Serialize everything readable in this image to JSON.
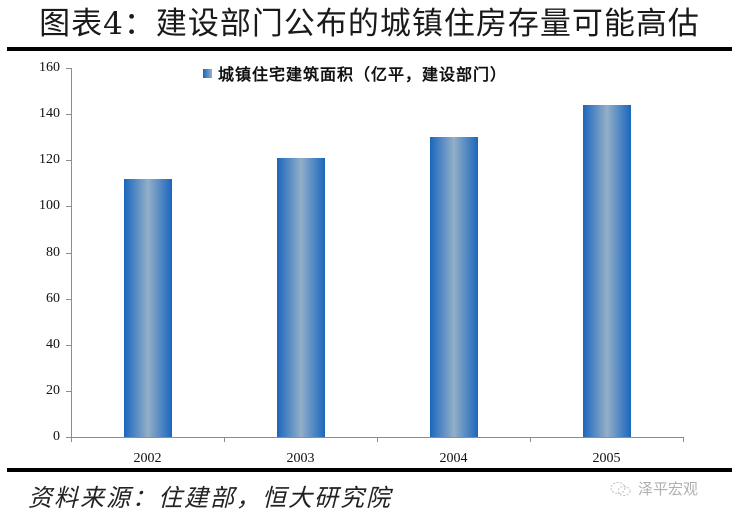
{
  "title": "图表4：建设部门公布的城镇住房存量可能高估",
  "source": "资料来源：住建部，恒大研究院",
  "watermark": "泽平宏观",
  "colors": {
    "bar_edge": "#1c66bd",
    "bar_center": "#93afc7",
    "axis": "#8c8c8c",
    "rule": "#000000"
  },
  "chart_data": {
    "type": "bar",
    "title": "图表4：建设部门公布的城镇住房存量可能高估",
    "xlabel": "",
    "ylabel": "",
    "categories": [
      "2002",
      "2003",
      "2004",
      "2005"
    ],
    "series": [
      {
        "name": "城镇住宅建筑面积（亿平，建设部门）",
        "values": [
          112,
          121,
          130,
          144
        ]
      }
    ],
    "ylim": [
      0,
      160
    ],
    "yticks": [
      "0",
      "20",
      "40",
      "60",
      "80",
      "100",
      "120",
      "140",
      "160"
    ],
    "grid": false,
    "legend_position": "top-center"
  }
}
